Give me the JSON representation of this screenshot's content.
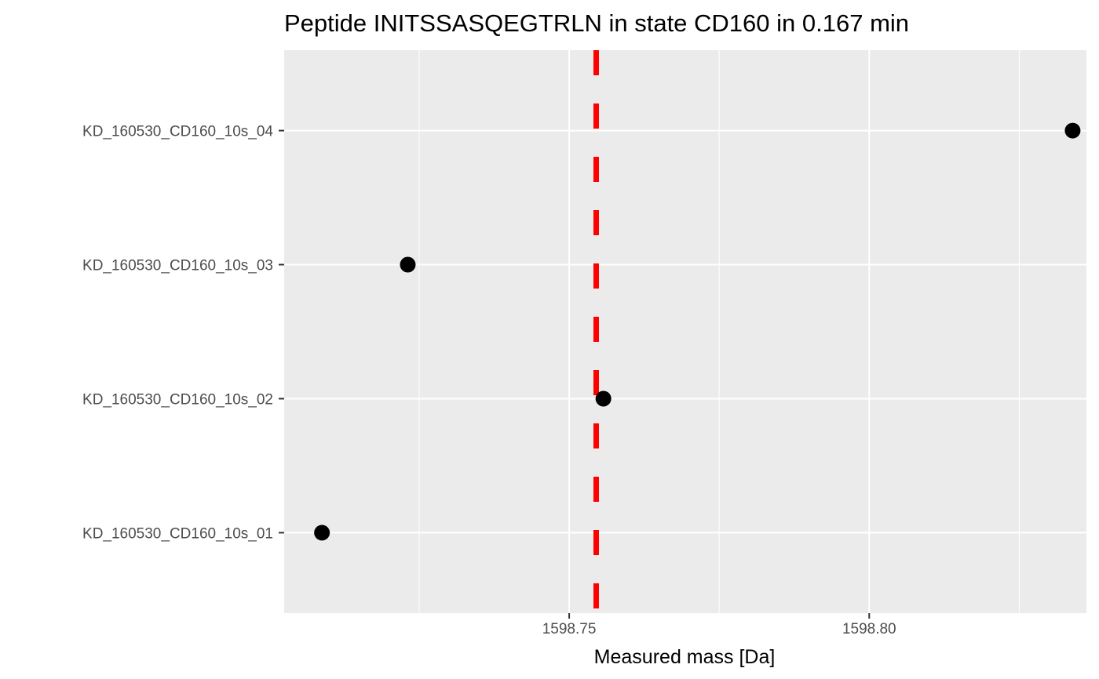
{
  "chart_data": {
    "type": "scatter",
    "title": "Peptide INITSSASQEGTRLN in state CD160 in 0.167 min",
    "xlabel": "Measured mass [Da]",
    "ylabel": "",
    "xlim": [
      1598.7025,
      1598.8362
    ],
    "x_ticks": [
      1598.75,
      1598.8
    ],
    "x_tick_labels": [
      "1598.75",
      "1598.80"
    ],
    "x_minor_ticks": [
      1598.725,
      1598.775,
      1598.825
    ],
    "categories": [
      "KD_160530_CD160_10s_01",
      "KD_160530_CD160_10s_02",
      "KD_160530_CD160_10s_03",
      "KD_160530_CD160_10s_04"
    ],
    "points": [
      {
        "y": "KD_160530_CD160_10s_01",
        "x": 1598.7088
      },
      {
        "y": "KD_160530_CD160_10s_02",
        "x": 1598.7557
      },
      {
        "y": "KD_160530_CD160_10s_03",
        "x": 1598.7231
      },
      {
        "y": "KD_160530_CD160_10s_04",
        "x": 1598.8339
      }
    ],
    "reference_line": {
      "x": 1598.7545,
      "style": "dashed",
      "color": "#FF0000"
    },
    "grid": true,
    "legend": "none",
    "colors": {
      "panel_background": "#EBEBEB",
      "grid": "#FFFFFF",
      "points": "#000000",
      "reference_line": "#FF0000",
      "tick_label": "#4D4D4D"
    }
  }
}
